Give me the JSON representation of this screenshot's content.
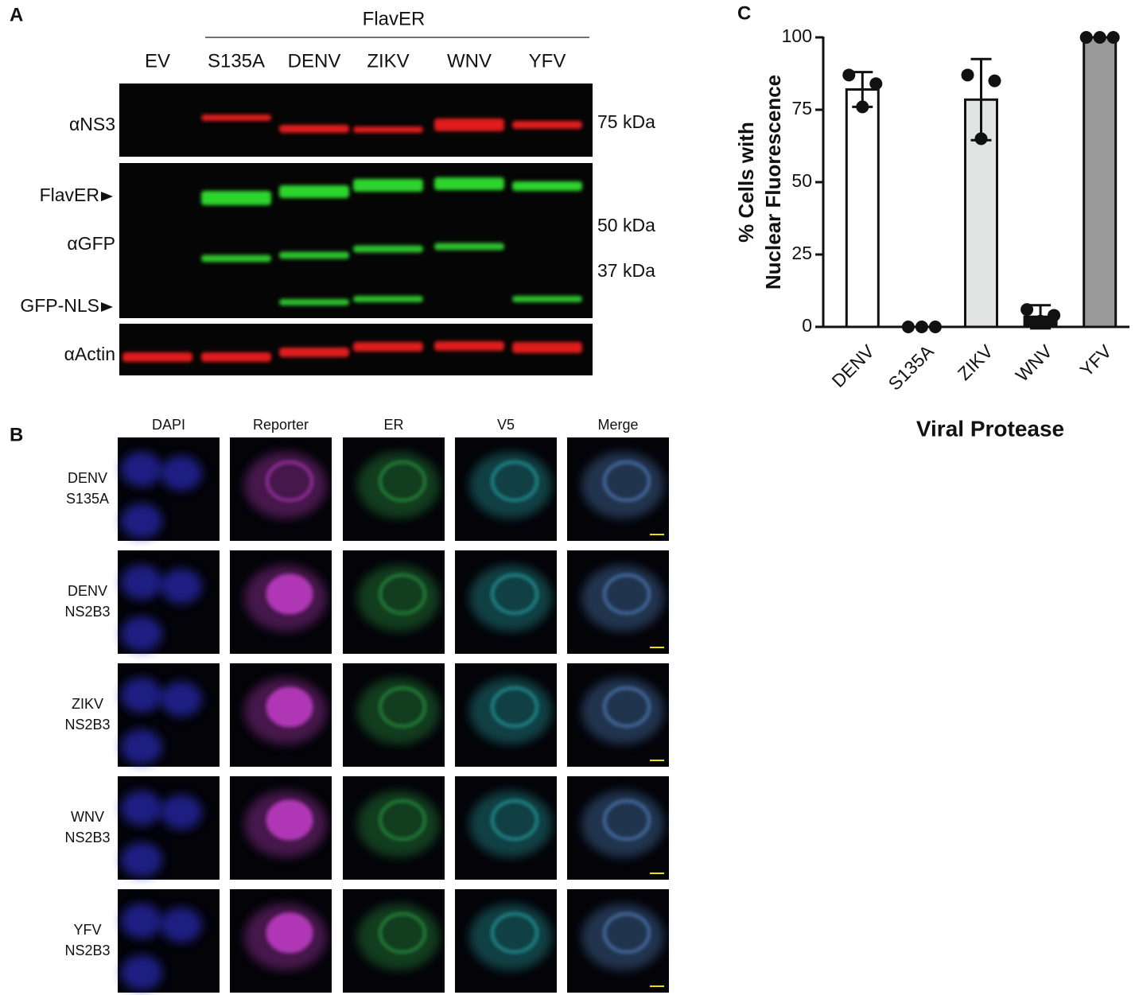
{
  "panel_labels": [
    "A",
    "B",
    "C"
  ],
  "blot": {
    "group_label": "FlavER",
    "lanes": [
      "EV",
      "S135A",
      "DENV",
      "ZIKV",
      "WNV",
      "YFV"
    ],
    "row_labels": [
      "αNS3",
      "FlavER",
      "αGFP",
      "GFP-NLS",
      "αActin"
    ],
    "size_markers": [
      "75 kDa",
      "50 kDa",
      "37 kDa"
    ]
  },
  "microscopy": {
    "columns": [
      "DAPI",
      "Reporter",
      "ER",
      "V5",
      "Merge"
    ],
    "rows": [
      [
        "DENV",
        "S135A"
      ],
      [
        "DENV",
        "NS2B3"
      ],
      [
        "ZIKV",
        "NS2B3"
      ],
      [
        "WNV",
        "NS2B3"
      ],
      [
        "YFV",
        "NS2B3"
      ]
    ]
  },
  "chart_data": {
    "type": "bar",
    "ylabel": [
      "% Cells with",
      "Nuclear Fluorescence"
    ],
    "xlabel": "Viral Protease",
    "categories": [
      "DENV",
      "S135A",
      "ZIKV",
      "WNV",
      "YFV"
    ],
    "values": [
      82,
      0,
      78.5,
      3.5,
      100
    ],
    "errors": [
      6,
      0,
      14,
      4,
      0
    ],
    "points": [
      [
        87,
        76,
        84
      ],
      [
        0,
        0,
        0
      ],
      [
        87,
        65,
        85
      ],
      [
        6,
        2,
        4
      ],
      [
        100,
        100,
        100
      ]
    ],
    "colors": [
      "#ffffff",
      "#ffffff",
      "#e2e4e3",
      "#111111",
      "#9a9a9a"
    ],
    "ylim": [
      0,
      100
    ],
    "yticks": [
      0,
      25,
      50,
      75,
      100
    ]
  }
}
